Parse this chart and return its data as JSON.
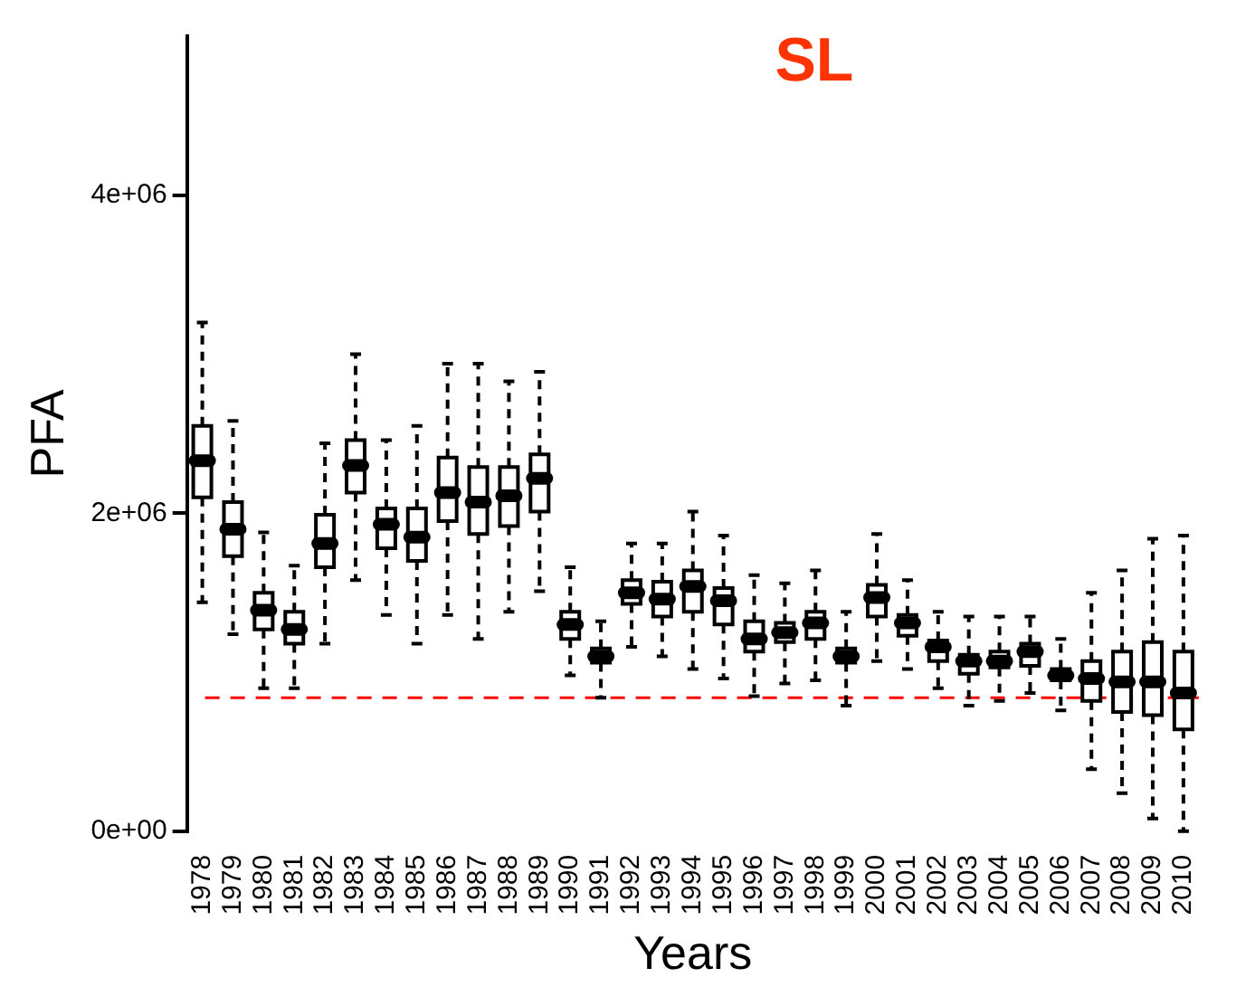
{
  "chart_data": {
    "type": "box",
    "title": "SL",
    "xlabel": "Years",
    "ylabel": "PFA",
    "categories": [
      "1978",
      "1979",
      "1980",
      "1981",
      "1982",
      "1983",
      "1984",
      "1985",
      "1986",
      "1987",
      "1988",
      "1989",
      "1990",
      "1991",
      "1992",
      "1993",
      "1994",
      "1995",
      "1996",
      "1997",
      "1998",
      "1999",
      "2000",
      "2001",
      "2002",
      "2003",
      "2004",
      "2005",
      "2006",
      "2007",
      "2008",
      "2009",
      "2010"
    ],
    "boxes": [
      {
        "low": 1440000,
        "q1": 2100000,
        "median": 2330000,
        "q3": 2550000,
        "high": 3200000
      },
      {
        "low": 1240000,
        "q1": 1730000,
        "median": 1900000,
        "q3": 2070000,
        "high": 2580000
      },
      {
        "low": 900000,
        "q1": 1270000,
        "median": 1390000,
        "q3": 1500000,
        "high": 1880000
      },
      {
        "low": 900000,
        "q1": 1180000,
        "median": 1270000,
        "q3": 1380000,
        "high": 1670000
      },
      {
        "low": 1180000,
        "q1": 1660000,
        "median": 1810000,
        "q3": 1990000,
        "high": 2440000
      },
      {
        "low": 1580000,
        "q1": 2130000,
        "median": 2300000,
        "q3": 2460000,
        "high": 3000000
      },
      {
        "low": 1360000,
        "q1": 1780000,
        "median": 1930000,
        "q3": 2030000,
        "high": 2460000
      },
      {
        "low": 1180000,
        "q1": 1700000,
        "median": 1850000,
        "q3": 2030000,
        "high": 2550000
      },
      {
        "low": 1360000,
        "q1": 1950000,
        "median": 2130000,
        "q3": 2350000,
        "high": 2940000
      },
      {
        "low": 1210000,
        "q1": 1870000,
        "median": 2070000,
        "q3": 2290000,
        "high": 2940000
      },
      {
        "low": 1380000,
        "q1": 1920000,
        "median": 2110000,
        "q3": 2290000,
        "high": 2830000
      },
      {
        "low": 1510000,
        "q1": 2010000,
        "median": 2220000,
        "q3": 2370000,
        "high": 2890000
      },
      {
        "low": 980000,
        "q1": 1210000,
        "median": 1300000,
        "q3": 1380000,
        "high": 1660000
      },
      {
        "low": 840000,
        "q1": 1060000,
        "median": 1100000,
        "q3": 1150000,
        "high": 1320000
      },
      {
        "low": 1160000,
        "q1": 1430000,
        "median": 1500000,
        "q3": 1580000,
        "high": 1810000
      },
      {
        "low": 1100000,
        "q1": 1350000,
        "median": 1460000,
        "q3": 1570000,
        "high": 1810000
      },
      {
        "low": 1020000,
        "q1": 1380000,
        "median": 1540000,
        "q3": 1640000,
        "high": 2010000
      },
      {
        "low": 960000,
        "q1": 1300000,
        "median": 1450000,
        "q3": 1530000,
        "high": 1860000
      },
      {
        "low": 850000,
        "q1": 1130000,
        "median": 1210000,
        "q3": 1320000,
        "high": 1610000
      },
      {
        "low": 930000,
        "q1": 1190000,
        "median": 1250000,
        "q3": 1310000,
        "high": 1560000
      },
      {
        "low": 950000,
        "q1": 1210000,
        "median": 1310000,
        "q3": 1380000,
        "high": 1640000
      },
      {
        "low": 790000,
        "q1": 1060000,
        "median": 1100000,
        "q3": 1150000,
        "high": 1380000
      },
      {
        "low": 1070000,
        "q1": 1350000,
        "median": 1470000,
        "q3": 1550000,
        "high": 1870000
      },
      {
        "low": 1020000,
        "q1": 1230000,
        "median": 1310000,
        "q3": 1360000,
        "high": 1580000
      },
      {
        "low": 900000,
        "q1": 1070000,
        "median": 1160000,
        "q3": 1200000,
        "high": 1380000
      },
      {
        "low": 790000,
        "q1": 990000,
        "median": 1070000,
        "q3": 1110000,
        "high": 1350000
      },
      {
        "low": 820000,
        "q1": 1030000,
        "median": 1070000,
        "q3": 1130000,
        "high": 1350000
      },
      {
        "low": 870000,
        "q1": 1040000,
        "median": 1130000,
        "q3": 1180000,
        "high": 1350000
      },
      {
        "low": 760000,
        "q1": 950000,
        "median": 980000,
        "q3": 1020000,
        "high": 1210000
      },
      {
        "low": 390000,
        "q1": 820000,
        "median": 960000,
        "q3": 1070000,
        "high": 1500000
      },
      {
        "low": 240000,
        "q1": 750000,
        "median": 940000,
        "q3": 1130000,
        "high": 1640000
      },
      {
        "low": 80000,
        "q1": 730000,
        "median": 940000,
        "q3": 1190000,
        "high": 1840000
      },
      {
        "low": 0,
        "q1": 640000,
        "median": 870000,
        "q3": 1130000,
        "high": 1860000
      }
    ],
    "ylim": [
      0,
      5000000
    ],
    "yticks": [
      {
        "value": 0,
        "label": "0e+00"
      },
      {
        "value": 2000000,
        "label": "2e+06"
      },
      {
        "value": 4000000,
        "label": "4e+06"
      }
    ],
    "ref_lines": [
      {
        "axis": "y",
        "value": 840000,
        "color": "#ff0000",
        "line_style": "dashed"
      }
    ],
    "grid": false,
    "legend": false
  }
}
